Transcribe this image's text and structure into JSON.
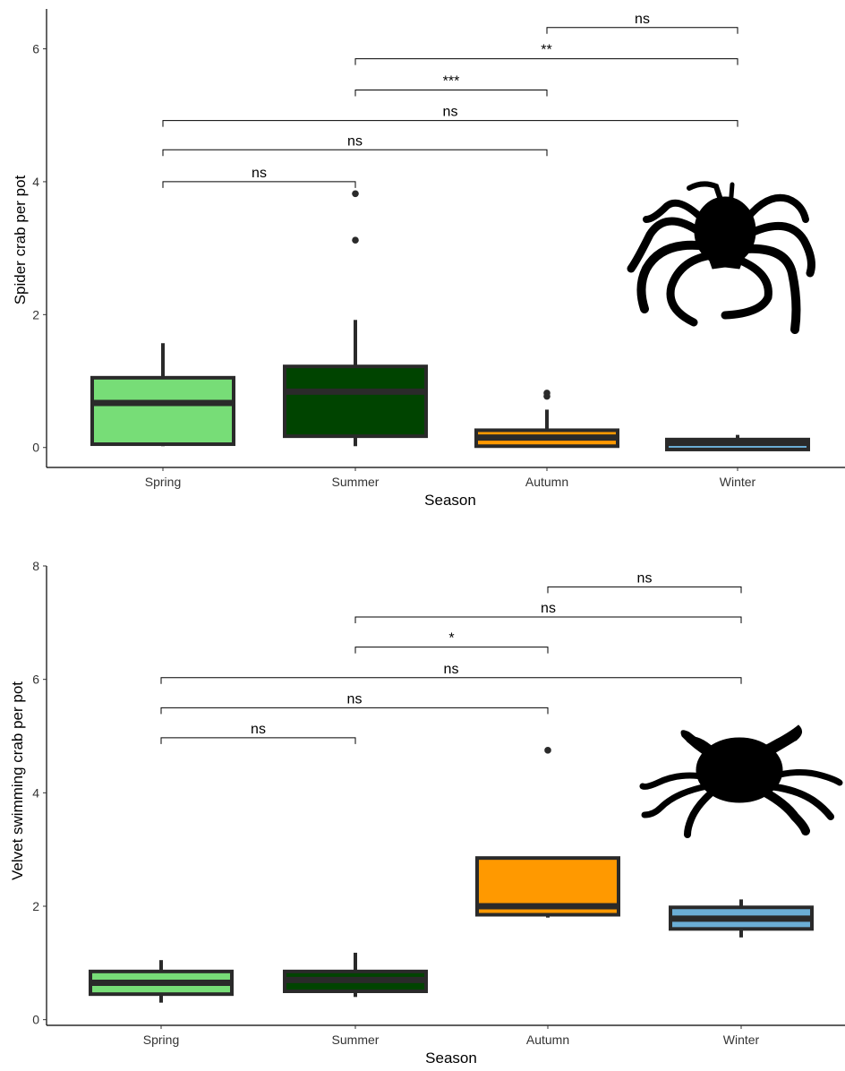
{
  "colors": {
    "spring": "#77dd77",
    "summer": "#004400",
    "autumn": "#ff9900",
    "winter": "#6baed6",
    "outline": "#2a2a2a"
  },
  "chart_data": [
    {
      "type": "boxplot",
      "xlabel": "Season",
      "ylabel": "Spider crab per pot",
      "categories": [
        "Spring",
        "Summer",
        "Autumn",
        "Winter"
      ],
      "ylim": [
        -0.3,
        6.6
      ],
      "yticks": [
        0,
        2,
        4,
        6
      ],
      "boxes": [
        {
          "name": "Spring",
          "color_key": "spring",
          "whisker_low": 0.02,
          "q1": 0.05,
          "median": 0.67,
          "q3": 1.05,
          "whisker_high": 1.57,
          "outliers": []
        },
        {
          "name": "Summer",
          "color_key": "summer",
          "whisker_low": 0.02,
          "q1": 0.17,
          "median": 0.84,
          "q3": 1.22,
          "whisker_high": 1.92,
          "outliers": [
            3.12,
            3.82
          ]
        },
        {
          "name": "Autumn",
          "color_key": "autumn",
          "whisker_low": 0.0,
          "q1": 0.02,
          "median": 0.15,
          "q3": 0.26,
          "whisker_high": 0.57,
          "outliers": [
            0.77,
            0.82
          ]
        },
        {
          "name": "Winter",
          "color_key": "winter",
          "whisker_low": -0.05,
          "q1": -0.03,
          "median": 0.07,
          "q3": 0.12,
          "whisker_high": 0.19,
          "outliers": []
        }
      ],
      "comparisons": [
        {
          "from": 0,
          "to": 1,
          "y": 4.0,
          "label": "ns"
        },
        {
          "from": 0,
          "to": 2,
          "y": 4.48,
          "label": "ns"
        },
        {
          "from": 0,
          "to": 3,
          "y": 4.92,
          "label": "ns"
        },
        {
          "from": 1,
          "to": 2,
          "y": 5.38,
          "label": "***"
        },
        {
          "from": 1,
          "to": 3,
          "y": 5.85,
          "label": "**"
        },
        {
          "from": 2,
          "to": 3,
          "y": 6.32,
          "label": "ns"
        }
      ]
    },
    {
      "type": "boxplot",
      "xlabel": "Season",
      "ylabel": "Velvet swimming crab  per pot",
      "categories": [
        "Spring",
        "Summer",
        "Autumn",
        "Winter"
      ],
      "ylim": [
        -0.1,
        8.0
      ],
      "yticks": [
        0,
        2,
        4,
        6,
        8
      ],
      "boxes": [
        {
          "name": "Spring",
          "color_key": "spring",
          "whisker_low": 0.3,
          "q1": 0.45,
          "median": 0.65,
          "q3": 0.85,
          "whisker_high": 1.05,
          "outliers": []
        },
        {
          "name": "Summer",
          "color_key": "summer",
          "whisker_low": 0.4,
          "q1": 0.5,
          "median": 0.7,
          "q3": 0.85,
          "whisker_high": 1.18,
          "outliers": []
        },
        {
          "name": "Autumn",
          "color_key": "autumn",
          "whisker_low": 1.8,
          "q1": 1.85,
          "median": 2.0,
          "q3": 2.85,
          "whisker_high": 2.85,
          "outliers": [
            4.75
          ]
        },
        {
          "name": "Winter",
          "color_key": "winter",
          "whisker_low": 1.45,
          "q1": 1.6,
          "median": 1.78,
          "q3": 1.98,
          "whisker_high": 2.12,
          "outliers": []
        }
      ],
      "comparisons": [
        {
          "from": 0,
          "to": 1,
          "y": 4.97,
          "label": "ns"
        },
        {
          "from": 0,
          "to": 2,
          "y": 5.5,
          "label": "ns"
        },
        {
          "from": 0,
          "to": 3,
          "y": 6.03,
          "label": "ns"
        },
        {
          "from": 1,
          "to": 2,
          "y": 6.57,
          "label": "*"
        },
        {
          "from": 1,
          "to": 3,
          "y": 7.1,
          "label": "ns"
        },
        {
          "from": 2,
          "to": 3,
          "y": 7.63,
          "label": "ns"
        }
      ]
    }
  ]
}
